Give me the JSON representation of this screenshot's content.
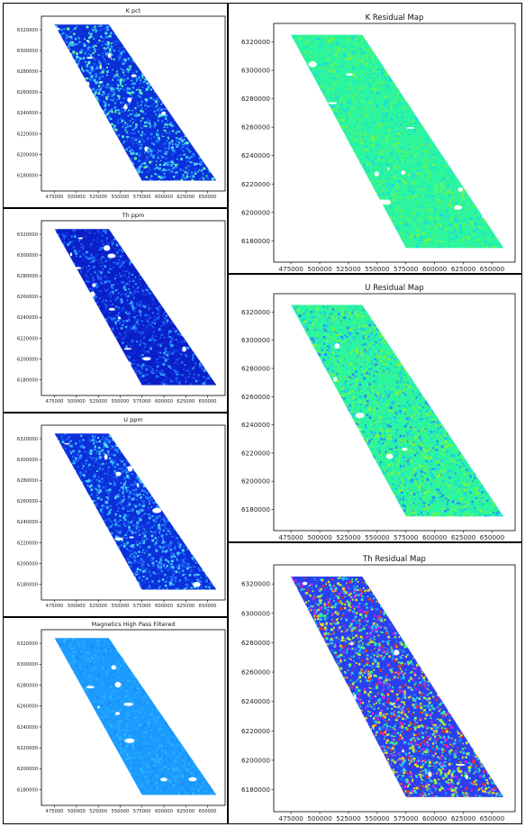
{
  "chart_data": [
    {
      "type": "scatter",
      "title": "K pct",
      "xlabel": "",
      "ylabel": "",
      "xlim": [
        460000,
        670000
      ],
      "ylim": [
        6165000,
        6333000
      ],
      "x_ticks": [
        "475000",
        "500000",
        "525000",
        "550000",
        "575000",
        "600000",
        "625000",
        "650000"
      ],
      "y_ticks": [
        "6180000",
        "6200000",
        "6220000",
        "6240000",
        "6260000",
        "6280000",
        "6300000",
        "6320000"
      ],
      "outline_x": [
        475000,
        537000,
        660000,
        575000
      ],
      "outline_y": [
        6325000,
        6325000,
        6175000,
        6175000
      ],
      "colors": [
        "#0b2fd9",
        "#1a55ee",
        "#1f88ff",
        "#37b8ff",
        "#49e2ff",
        "#66ff99"
      ],
      "palette": "jet"
    },
    {
      "type": "scatter",
      "title": "Th ppm",
      "xlabel": "",
      "ylabel": "",
      "xlim": [
        460000,
        670000
      ],
      "ylim": [
        6165000,
        6333000
      ],
      "x_ticks": [
        "475000",
        "500000",
        "525000",
        "550000",
        "575000",
        "600000",
        "625000",
        "650000"
      ],
      "y_ticks": [
        "6180000",
        "6200000",
        "6220000",
        "6240000",
        "6260000",
        "6280000",
        "6300000",
        "6320000"
      ],
      "outline_x": [
        475000,
        537000,
        660000,
        575000
      ],
      "outline_y": [
        6325000,
        6325000,
        6175000,
        6175000
      ],
      "colors": [
        "#0a1fc8",
        "#0b2fd9",
        "#1a45ea",
        "#1f70ff",
        "#2fa8ff"
      ],
      "palette": "jet"
    },
    {
      "type": "scatter",
      "title": "U ppm",
      "xlabel": "",
      "ylabel": "",
      "xlim": [
        460000,
        670000
      ],
      "ylim": [
        6165000,
        6333000
      ],
      "x_ticks": [
        "475000",
        "500000",
        "525000",
        "550000",
        "575000",
        "600000",
        "625000",
        "650000"
      ],
      "y_ticks": [
        "6180000",
        "6200000",
        "6220000",
        "6240000",
        "6260000",
        "6280000",
        "6300000",
        "6320000"
      ],
      "outline_x": [
        475000,
        537000,
        660000,
        575000
      ],
      "outline_y": [
        6325000,
        6325000,
        6175000,
        6175000
      ],
      "colors": [
        "#0b2fd9",
        "#1a55ee",
        "#1f80ff",
        "#37b0ff",
        "#4ad8ff"
      ],
      "palette": "jet"
    },
    {
      "type": "scatter",
      "title": "Magnetics High Pass Filtered",
      "xlabel": "",
      "ylabel": "",
      "xlim": [
        460000,
        670000
      ],
      "ylim": [
        6165000,
        6333000
      ],
      "x_ticks": [
        "475000",
        "500000",
        "525000",
        "550000",
        "575000",
        "600000",
        "625000",
        "650000"
      ],
      "y_ticks": [
        "6180000",
        "6200000",
        "6220000",
        "6240000",
        "6260000",
        "6280000",
        "6300000",
        "6320000"
      ],
      "outline_x": [
        475000,
        537000,
        660000,
        575000
      ],
      "outline_y": [
        6325000,
        6325000,
        6175000,
        6175000
      ],
      "colors": [
        "#1c9bff",
        "#22a6ff",
        "#2bb3ff",
        "#1a8cf5"
      ],
      "palette": "jet"
    },
    {
      "type": "scatter",
      "title": "K Residual Map",
      "xlabel": "",
      "ylabel": "",
      "xlim": [
        460000,
        670000
      ],
      "ylim": [
        6165000,
        6333000
      ],
      "x_ticks": [
        "475000",
        "500000",
        "525000",
        "550000",
        "575000",
        "600000",
        "625000",
        "650000"
      ],
      "y_ticks": [
        "6180000",
        "6200000",
        "6220000",
        "6240000",
        "6260000",
        "6280000",
        "6300000",
        "6320000"
      ],
      "outline_x": [
        475000,
        537000,
        660000,
        575000
      ],
      "outline_y": [
        6325000,
        6325000,
        6175000,
        6175000
      ],
      "colors": [
        "#2af5a0",
        "#3cf58a",
        "#22e8c0",
        "#5cf560",
        "#18d8e8",
        "#7af540"
      ],
      "palette": "jet"
    },
    {
      "type": "scatter",
      "title": "U Residual Map",
      "xlabel": "",
      "ylabel": "",
      "xlim": [
        460000,
        670000
      ],
      "ylim": [
        6165000,
        6333000
      ],
      "x_ticks": [
        "475000",
        "500000",
        "525000",
        "550000",
        "575000",
        "600000",
        "625000",
        "650000"
      ],
      "y_ticks": [
        "6180000",
        "6200000",
        "6220000",
        "6240000",
        "6260000",
        "6280000",
        "6300000",
        "6320000"
      ],
      "outline_x": [
        475000,
        537000,
        660000,
        575000
      ],
      "outline_y": [
        6325000,
        6325000,
        6175000,
        6175000
      ],
      "colors": [
        "#2af5a0",
        "#5cf560",
        "#22e0d0",
        "#8af530",
        "#1cc8f0",
        "#2a8cff"
      ],
      "palette": "jet"
    },
    {
      "type": "scatter",
      "title": "Th Residual Map",
      "xlabel": "",
      "ylabel": "",
      "xlim": [
        460000,
        670000
      ],
      "ylim": [
        6165000,
        6333000
      ],
      "x_ticks": [
        "475000",
        "500000",
        "525000",
        "550000",
        "575000",
        "600000",
        "625000",
        "650000"
      ],
      "y_ticks": [
        "6180000",
        "6200000",
        "6220000",
        "6240000",
        "6260000",
        "6280000",
        "6300000",
        "6320000"
      ],
      "outline_x": [
        475000,
        537000,
        660000,
        575000
      ],
      "outline_y": [
        6325000,
        6325000,
        6175000,
        6175000
      ],
      "colors": [
        "#2a40f0",
        "#2ac8ff",
        "#3cf58a",
        "#b8f030",
        "#f0e020",
        "#f03020",
        "#e020e0",
        "#1a80ff"
      ],
      "palette": "jet"
    }
  ]
}
